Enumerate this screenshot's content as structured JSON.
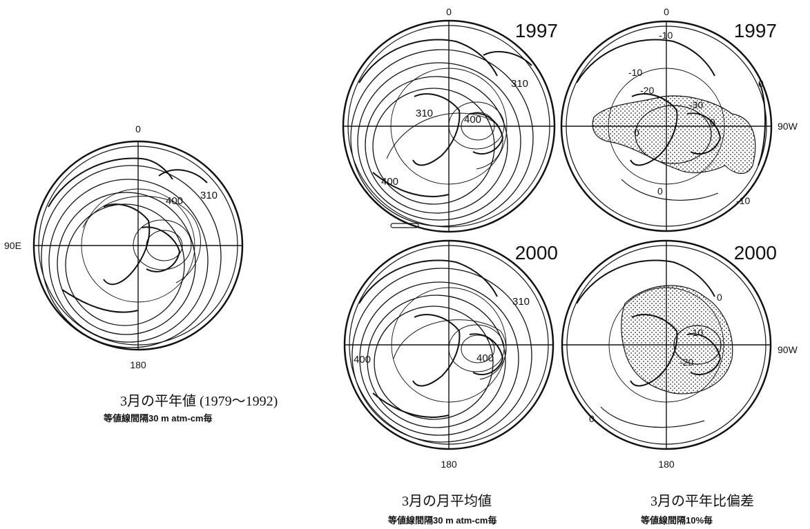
{
  "colors": {
    "ink": "#111111",
    "background": "#ffffff",
    "stipple": "#222222"
  },
  "panels": [
    {
      "id": "climatology",
      "top_label": "0",
      "bottom_label": "180",
      "left_label": "90E",
      "right_label": "",
      "year": "",
      "contour_labels": [
        "310",
        "400"
      ]
    },
    {
      "id": "mean-1997",
      "top_label": "0",
      "bottom_label": "",
      "left_label": "",
      "right_label": "",
      "year": "1997",
      "contour_labels": [
        "310",
        "310",
        "400",
        "400"
      ]
    },
    {
      "id": "anom-1997",
      "top_label": "0",
      "bottom_label": "",
      "left_label": "",
      "right_label": "90W",
      "year": "1997",
      "contour_labels": [
        "-10",
        "-10",
        "-20",
        "-30",
        "0",
        "0",
        "0",
        "-10",
        "0"
      ]
    },
    {
      "id": "mean-2000",
      "top_label": "",
      "bottom_label": "180",
      "left_label": "",
      "right_label": "",
      "year": "2000",
      "contour_labels": [
        "310",
        "400",
        "400"
      ]
    },
    {
      "id": "anom-2000",
      "top_label": "",
      "bottom_label": "180",
      "left_label": "",
      "right_label": "90W",
      "year": "2000",
      "contour_labels": [
        "0",
        "-10",
        "-20",
        "0"
      ]
    }
  ],
  "captions": {
    "climatology_title": "3月の平年値 (1979～1992)",
    "climatology_interval": "等値線間隔30 m atm-cm毎",
    "monthly_mean_title": "3月の月平均値",
    "monthly_mean_interval": "等値線間隔30 m atm-cm毎",
    "anomaly_title": "3月の平年比偏差",
    "anomaly_interval": "等値線間隔10%毎"
  }
}
